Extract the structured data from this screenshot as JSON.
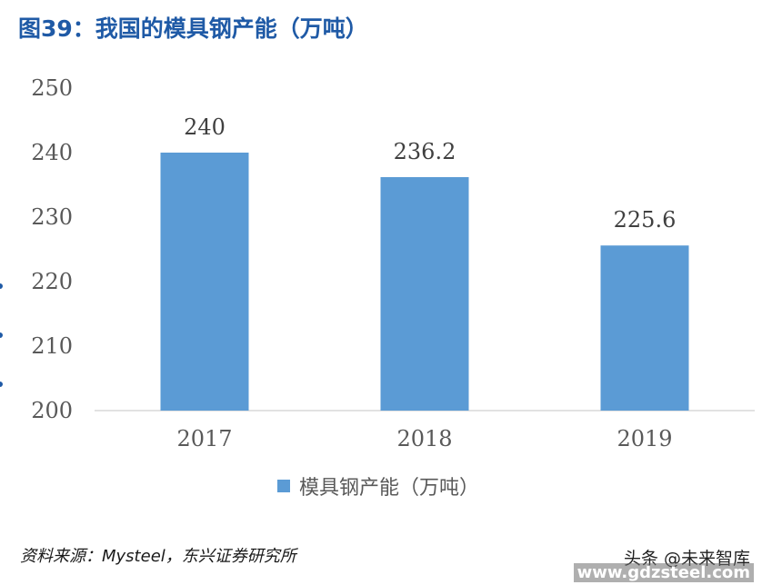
{
  "figure_title": "图39：我国的模具钢产能（万吨）",
  "source_text": "资料来源：Mysteel，东兴证券研究所",
  "watermark_line1": "头条 @未来智库",
  "watermark_line2": "www.gdzsteel.com",
  "colors": {
    "bar": "#5b9bd5",
    "title": "#1f5aa6",
    "axis": "#d9d9d9",
    "tick_text": "#595959"
  },
  "chart_data": {
    "type": "bar",
    "categories": [
      "2017",
      "2018",
      "2019"
    ],
    "series": [
      {
        "name": "模具钢产能（万吨）",
        "values": [
          240,
          236.2,
          225.6
        ],
        "labels": [
          "240",
          "236.2",
          "225.6"
        ]
      }
    ],
    "ylim": [
      200,
      250
    ],
    "yticks": [
      200,
      210,
      220,
      230,
      240,
      250
    ],
    "grid": false,
    "legend_position": "bottom"
  }
}
